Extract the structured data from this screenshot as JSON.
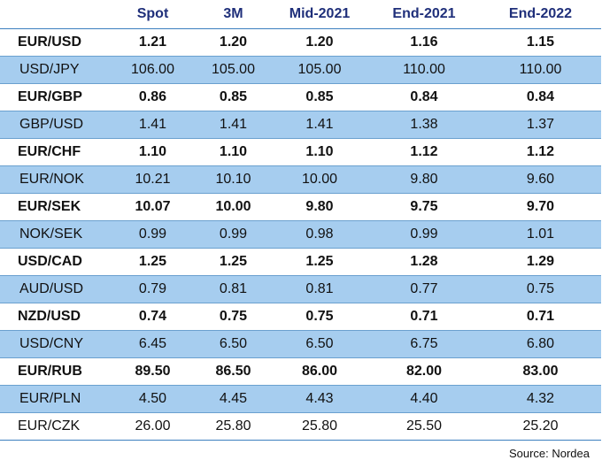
{
  "table": {
    "columns": [
      "",
      "Spot",
      "3M",
      "Mid-2021",
      "End-2021",
      "End-2022"
    ],
    "rows": [
      {
        "pair": "EUR/USD",
        "values": [
          "1.21",
          "1.20",
          "1.20",
          "1.16",
          "1.15"
        ],
        "style": "bold"
      },
      {
        "pair": "USD/JPY",
        "values": [
          "106.00",
          "105.00",
          "105.00",
          "110.00",
          "110.00"
        ],
        "style": "light"
      },
      {
        "pair": "EUR/GBP",
        "values": [
          "0.86",
          "0.85",
          "0.85",
          "0.84",
          "0.84"
        ],
        "style": "bold"
      },
      {
        "pair": "GBP/USD",
        "values": [
          "1.41",
          "1.41",
          "1.41",
          "1.38",
          "1.37"
        ],
        "style": "light"
      },
      {
        "pair": "EUR/CHF",
        "values": [
          "1.10",
          "1.10",
          "1.10",
          "1.12",
          "1.12"
        ],
        "style": "bold"
      },
      {
        "pair": "EUR/NOK",
        "values": [
          "10.21",
          "10.10",
          "10.00",
          "9.80",
          "9.60"
        ],
        "style": "light"
      },
      {
        "pair": "EUR/SEK",
        "values": [
          "10.07",
          "10.00",
          "9.80",
          "9.75",
          "9.70"
        ],
        "style": "bold"
      },
      {
        "pair": "NOK/SEK",
        "values": [
          "0.99",
          "0.99",
          "0.98",
          "0.99",
          "1.01"
        ],
        "style": "light"
      },
      {
        "pair": "USD/CAD",
        "values": [
          "1.25",
          "1.25",
          "1.25",
          "1.28",
          "1.29"
        ],
        "style": "bold"
      },
      {
        "pair": "AUD/USD",
        "values": [
          "0.79",
          "0.81",
          "0.81",
          "0.77",
          "0.75"
        ],
        "style": "light"
      },
      {
        "pair": "NZD/USD",
        "values": [
          "0.74",
          "0.75",
          "0.75",
          "0.71",
          "0.71"
        ],
        "style": "bold"
      },
      {
        "pair": "USD/CNY",
        "values": [
          "6.45",
          "6.50",
          "6.50",
          "6.75",
          "6.80"
        ],
        "style": "light"
      },
      {
        "pair": "EUR/RUB",
        "values": [
          "89.50",
          "86.50",
          "86.00",
          "82.00",
          "83.00"
        ],
        "style": "bold"
      },
      {
        "pair": "EUR/PLN",
        "values": [
          "4.50",
          "4.45",
          "4.43",
          "4.40",
          "4.32"
        ],
        "style": "light"
      },
      {
        "pair": "EUR/CZK",
        "values": [
          "26.00",
          "25.80",
          "25.80",
          "25.50",
          "25.20"
        ],
        "style": "white"
      }
    ]
  },
  "source": "Source: Nordea",
  "colors": {
    "header_text": "#1f2f7a",
    "shaded_row": "#a6cdef",
    "row_divider": "#6aa0cf"
  }
}
